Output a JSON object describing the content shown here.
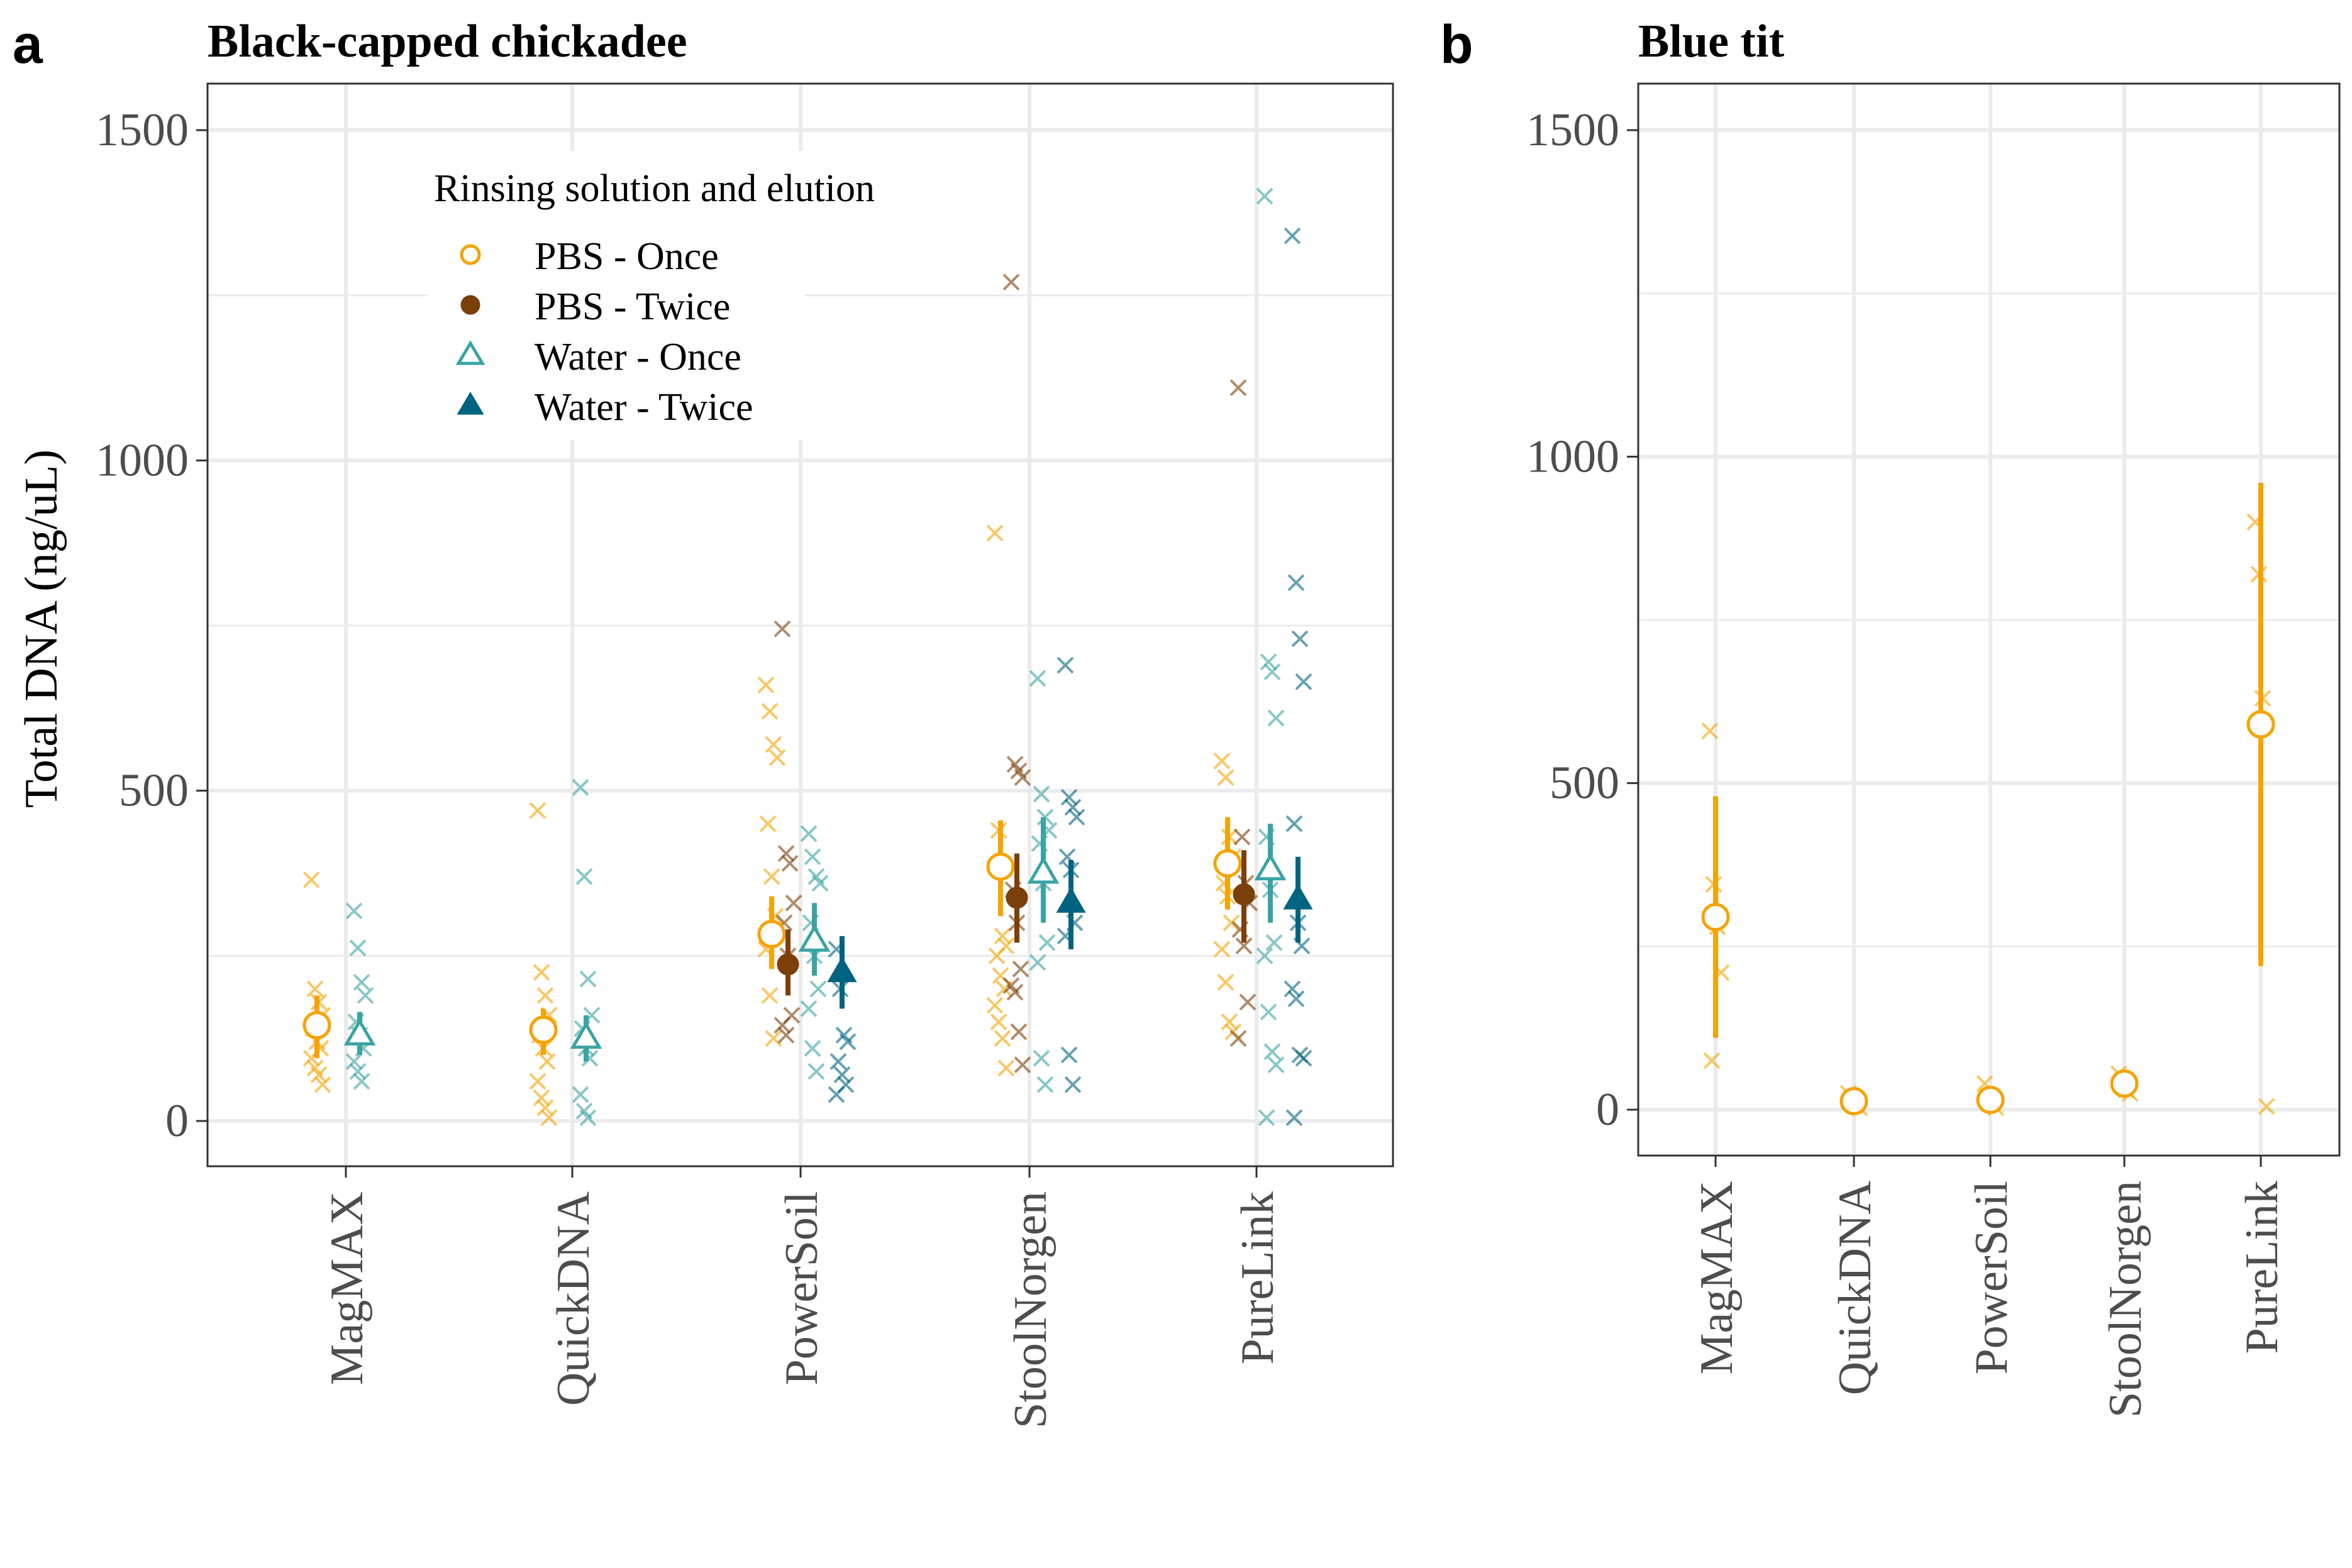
{
  "figure_letters": {
    "a": "a",
    "b": "b"
  },
  "colors": {
    "pbs_once": "#f5a300",
    "pbs_twice": "#7b3f0a",
    "water_once": "#3aa3a3",
    "water_twice": "#00637f"
  },
  "chart_data": [
    {
      "type": "scatter",
      "panel": "a",
      "title": "Black-capped chickadee",
      "xlabel": "",
      "ylabel": "Total DNA (ng/uL)",
      "ylim": [
        -75,
        1580
      ],
      "yticks": [
        0,
        500,
        1000,
        1500
      ],
      "categories": [
        "MagMAX",
        "QuickDNA",
        "PowerSoil",
        "StoolNorgen",
        "PureLink"
      ],
      "grid": true,
      "legend": {
        "title": "Rinsing solution and elution",
        "placement": "top-center",
        "entries": [
          {
            "name": "PBS - Once",
            "marker": "open-circle",
            "color": "pbs_once"
          },
          {
            "name": "PBS - Twice",
            "marker": "filled-circle",
            "color": "pbs_twice"
          },
          {
            "name": "Water - Once",
            "marker": "open-triangle",
            "color": "water_once"
          },
          {
            "name": "Water - Twice",
            "marker": "filled-triangle",
            "color": "water_twice"
          }
        ]
      },
      "series": [
        {
          "name": "PBS - Once",
          "marker": "open-circle",
          "color": "pbs_once",
          "groups": [
            {
              "category": "MagMAX",
              "mean": 145,
              "ci": [
                95,
                190
              ],
              "points": [
                365,
                200,
                180,
                160,
                140,
                120,
                110,
                95,
                80,
                70,
                55
              ]
            },
            {
              "category": "QuickDNA",
              "mean": 138,
              "ci": [
                100,
                170
              ],
              "points": [
                470,
                225,
                190,
                160,
                130,
                110,
                90,
                60,
                35,
                20,
                5
              ]
            },
            {
              "category": "PowerSoil",
              "mean": 283,
              "ci": [
                230,
                340
              ],
              "points": [
                660,
                620,
                570,
                550,
                450,
                370,
                310,
                260,
                190,
                125
              ]
            },
            {
              "category": "StoolNorgen",
              "mean": 385,
              "ci": [
                310,
                455
              ],
              "points": [
                890,
                440,
                280,
                265,
                250,
                220,
                200,
                175,
                150,
                125,
                80
              ]
            },
            {
              "category": "PureLink",
              "mean": 390,
              "ci": [
                320,
                460
              ],
              "points": [
                545,
                520,
                430,
                400,
                360,
                340,
                300,
                260,
                210,
                150,
                135
              ]
            }
          ]
        },
        {
          "name": "PBS - Twice",
          "marker": "filled-circle",
          "color": "pbs_twice",
          "groups": [
            {
              "category": "PowerSoil",
              "mean": 237,
              "ci": [
                190,
                290
              ],
              "points": [
                745,
                405,
                390,
                330,
                300,
                250,
                160,
                145,
                130
              ]
            },
            {
              "category": "StoolNorgen",
              "mean": 338,
              "ci": [
                270,
                405
              ],
              "points": [
                1270,
                540,
                530,
                520,
                350,
                300,
                230,
                205,
                195,
                135,
                85
              ]
            },
            {
              "category": "PureLink",
              "mean": 343,
              "ci": [
                270,
                410
              ],
              "points": [
                1110,
                430,
                360,
                330,
                290,
                265,
                180,
                125
              ]
            }
          ]
        },
        {
          "name": "Water - Once",
          "marker": "open-triangle",
          "color": "water_once",
          "groups": [
            {
              "category": "MagMAX",
              "mean": 130,
              "ci": [
                100,
                165
              ],
              "points": [
                318,
                262,
                210,
                190,
                150,
                130,
                110,
                90,
                75,
                60
              ]
            },
            {
              "category": "QuickDNA",
              "mean": 125,
              "ci": [
                90,
                160
              ],
              "points": [
                505,
                370,
                215,
                160,
                140,
                110,
                95,
                40,
                15,
                5
              ]
            },
            {
              "category": "PowerSoil",
              "mean": 272,
              "ci": [
                220,
                330
              ],
              "points": [
                435,
                400,
                370,
                360,
                300,
                250,
                200,
                170,
                110,
                75
              ]
            },
            {
              "category": "StoolNorgen",
              "mean": 375,
              "ci": [
                300,
                460
              ],
              "points": [
                670,
                495,
                460,
                440,
                420,
                360,
                270,
                240,
                95,
                55
              ]
            },
            {
              "category": "PureLink",
              "mean": 380,
              "ci": [
                300,
                450
              ],
              "points": [
                1400,
                695,
                680,
                610,
                430,
                350,
                270,
                250,
                165,
                105,
                85,
                5
              ]
            }
          ]
        },
        {
          "name": "Water - Twice",
          "marker": "filled-triangle",
          "color": "water_twice",
          "groups": [
            {
              "category": "PowerSoil",
              "mean": 225,
              "ci": [
                170,
                280
              ],
              "points": [
                260,
                200,
                130,
                120,
                90,
                70,
                55,
                40
              ]
            },
            {
              "category": "StoolNorgen",
              "mean": 330,
              "ci": [
                260,
                395
              ],
              "points": [
                690,
                490,
                475,
                460,
                400,
                380,
                300,
                280,
                100,
                55
              ]
            },
            {
              "category": "PureLink",
              "mean": 335,
              "ci": [
                270,
                400
              ],
              "points": [
                1340,
                815,
                730,
                665,
                450,
                300,
                265,
                200,
                185,
                100,
                95,
                5
              ]
            }
          ]
        }
      ]
    },
    {
      "type": "scatter",
      "panel": "b",
      "title": "Blue tit",
      "xlabel": "",
      "ylabel": "",
      "ylim": [
        -75,
        1580
      ],
      "yticks": [
        0,
        500,
        1000,
        1500
      ],
      "categories": [
        "MagMAX",
        "QuickDNA",
        "PowerSoil",
        "StoolNorgen",
        "PureLink"
      ],
      "grid": true,
      "series": [
        {
          "name": "PBS - Once",
          "marker": "open-circle",
          "color": "pbs_once",
          "groups": [
            {
              "category": "MagMAX",
              "mean": 295,
              "ci": [
                110,
                480
              ],
              "points": [
                580,
                345,
                280,
                210,
                75
              ]
            },
            {
              "category": "QuickDNA",
              "mean": 13,
              "ci": [
                5,
                22
              ],
              "points": [
                25,
                15,
                8,
                3
              ]
            },
            {
              "category": "PowerSoil",
              "mean": 15,
              "ci": [
                5,
                28
              ],
              "points": [
                40,
                20,
                10,
                3
              ]
            },
            {
              "category": "StoolNorgen",
              "mean": 40,
              "ci": [
                28,
                52
              ],
              "points": [
                55,
                45,
                30,
                25
              ]
            },
            {
              "category": "PureLink",
              "mean": 590,
              "ci": [
                220,
                960
              ],
              "points": [
                900,
                820,
                630,
                5
              ]
            }
          ]
        }
      ]
    }
  ]
}
